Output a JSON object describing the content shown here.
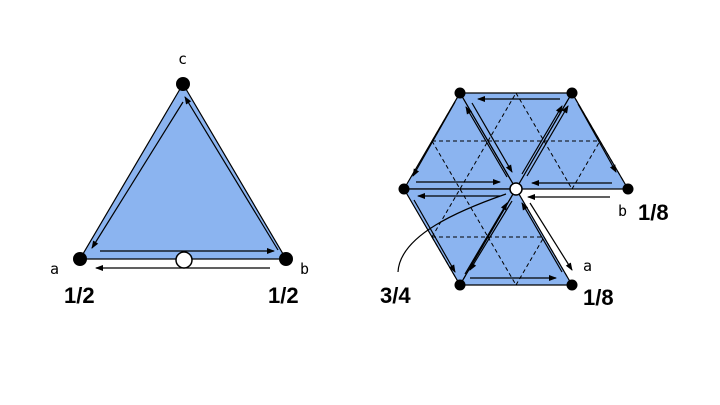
{
  "left_figure": {
    "vertex_labels": {
      "top": "c",
      "left": "a",
      "right": "b"
    },
    "fractions": {
      "left": "1/2",
      "right": "1/2"
    }
  },
  "right_figure": {
    "vertex_labels": {
      "b": "b",
      "a": "a"
    },
    "fractions": {
      "b": "1/8",
      "a": "1/8",
      "center": "3/4"
    }
  },
  "colors": {
    "fill": "#8BB4F0",
    "stroke": "#000000",
    "vertex": "#000000",
    "hole": "#ffffff"
  }
}
